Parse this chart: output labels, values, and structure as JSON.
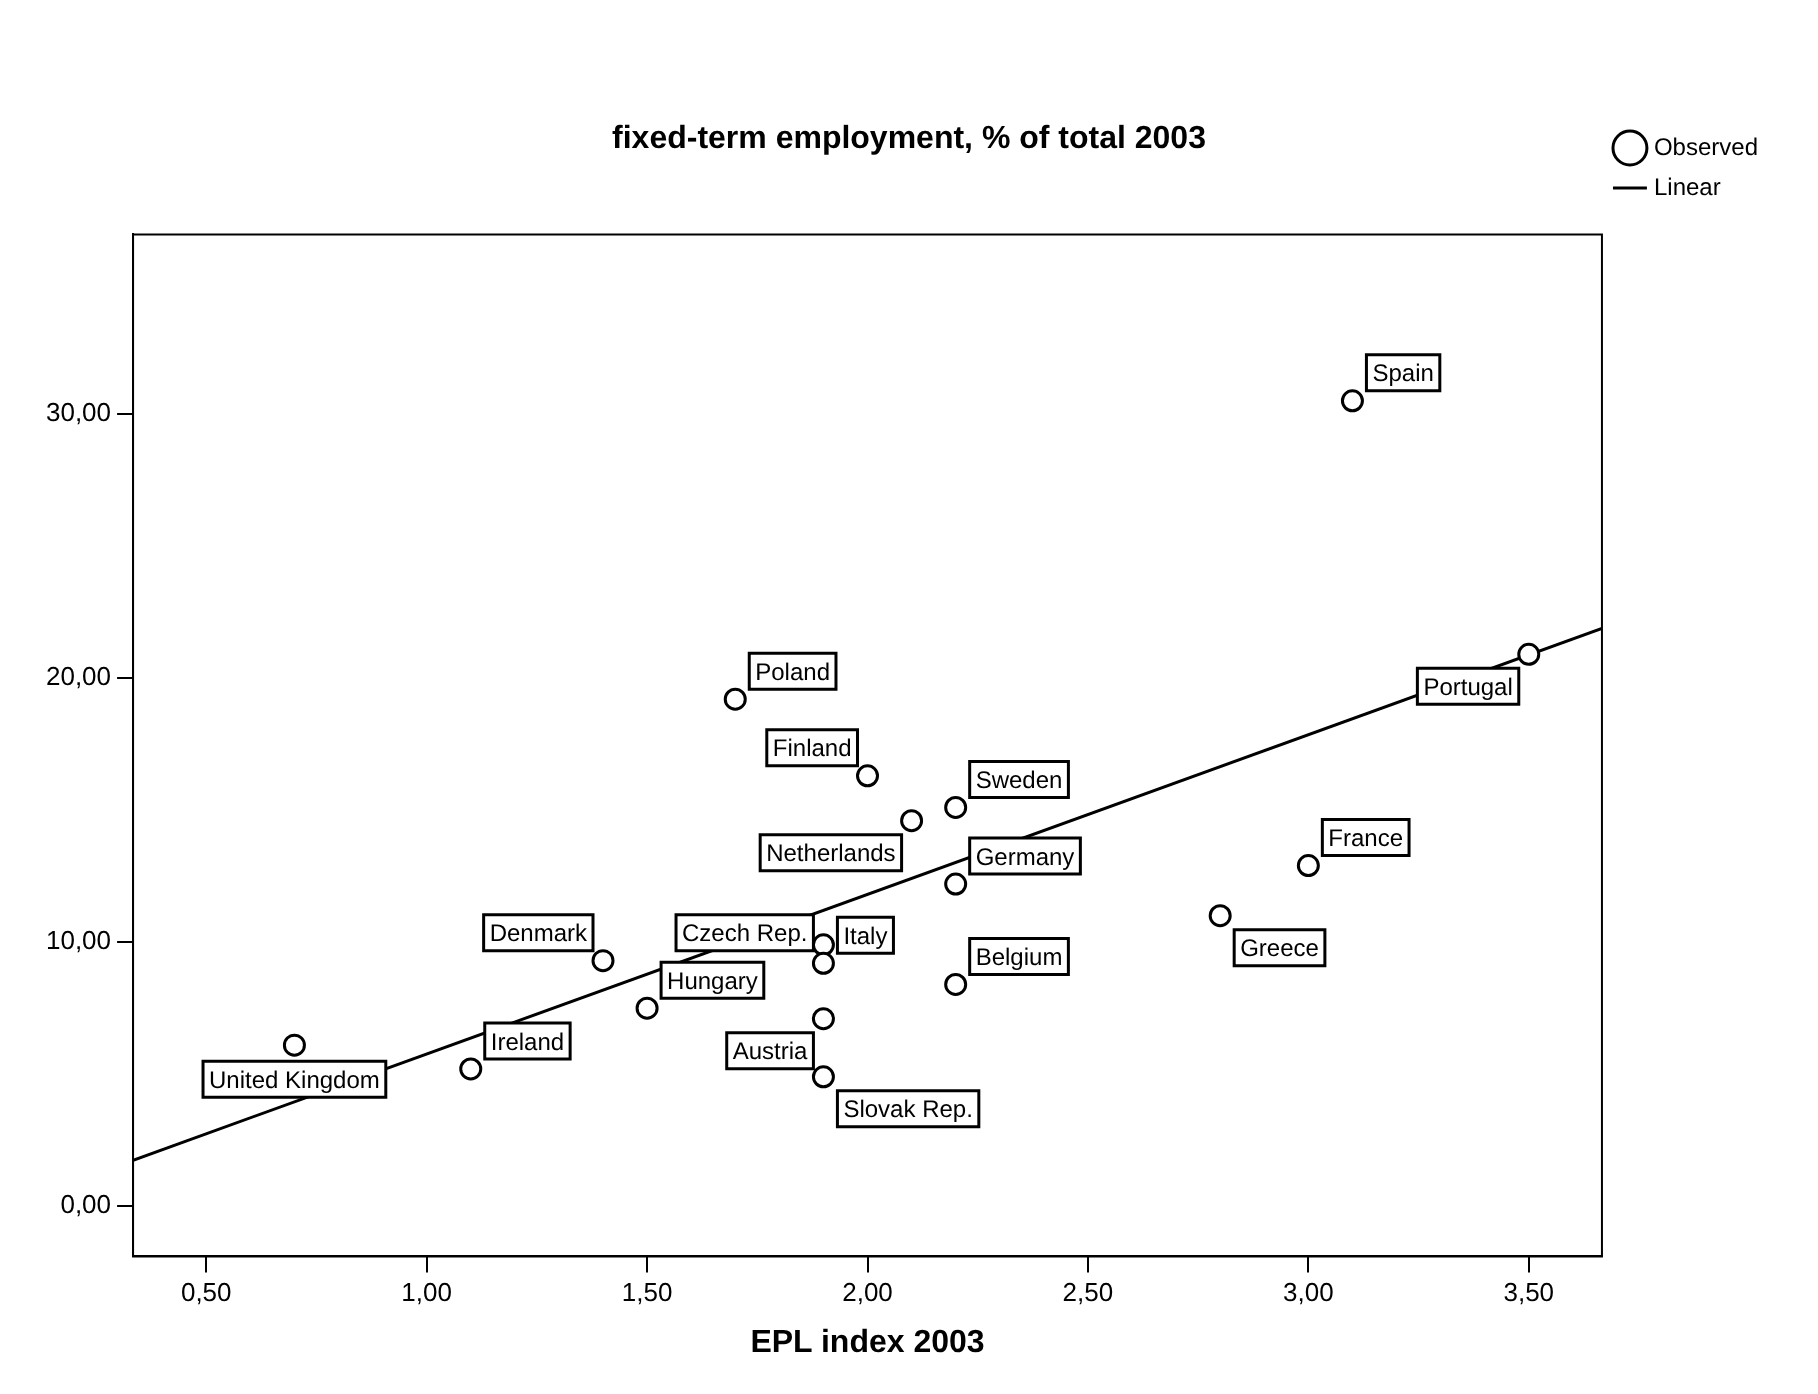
{
  "chart_data": {
    "type": "scatter",
    "title": "fixed-term employment, % of total 2003",
    "xlabel": "EPL index 2003",
    "xlim": [
      0.334,
      3.666
    ],
    "ylim": [
      -1.9,
      36.8
    ],
    "xticks": [
      {
        "value": 0.5,
        "label": "0,50"
      },
      {
        "value": 1,
        "label": "1,00"
      },
      {
        "value": 1.5,
        "label": "1,50"
      },
      {
        "value": 2,
        "label": "2,00"
      },
      {
        "value": 2.5,
        "label": "2,50"
      },
      {
        "value": 3,
        "label": "3,00"
      },
      {
        "value": 3.5,
        "label": "3,50"
      }
    ],
    "yticks": [
      {
        "value": 0,
        "label": "0,00"
      },
      {
        "value": 10,
        "label": "10,00"
      },
      {
        "value": 20,
        "label": "20,00"
      },
      {
        "value": 30,
        "label": "30,00"
      }
    ],
    "legend": "top right",
    "grid": false,
    "series": [
      {
        "name": "Observed",
        "color": "#000000",
        "marker": "circle",
        "x": [
          3.1,
          1.7,
          2.0,
          3.5,
          2.2,
          2.1,
          2.2,
          3.0,
          2.8,
          1.9,
          1.4,
          1.9,
          1.5,
          2.2,
          1.9,
          1.9,
          1.1,
          0.7
        ],
        "values": [
          30.5,
          19.2,
          16.3,
          20.9,
          15.1,
          14.6,
          12.2,
          12.9,
          11.0,
          9.9,
          9.3,
          9.2,
          7.5,
          8.4,
          7.1,
          4.9,
          5.2,
          6.1
        ]
      },
      {
        "name": "Linear",
        "type": "line",
        "color": "#000000",
        "marker": "none",
        "x": [
          0.334,
          3.666
        ],
        "values": [
          1.74,
          21.88
        ]
      }
    ],
    "annotations": [
      {
        "text": "Spain",
        "x": 3.1,
        "y": 30.5
      },
      {
        "text": "Poland",
        "x": 1.7,
        "y": 19.2
      },
      {
        "text": "Finland",
        "x": 2.0,
        "y": 16.3
      },
      {
        "text": "Portugal",
        "x": 3.5,
        "y": 20.9
      },
      {
        "text": "Sweden",
        "x": 2.2,
        "y": 15.1
      },
      {
        "text": "Netherlands",
        "x": 2.1,
        "y": 14.6
      },
      {
        "text": "Germany",
        "x": 2.2,
        "y": 12.2
      },
      {
        "text": "France",
        "x": 3.0,
        "y": 12.9
      },
      {
        "text": "Greece",
        "x": 2.8,
        "y": 11.0
      },
      {
        "text": "Czech Rep.",
        "x": 1.9,
        "y": 9.9
      },
      {
        "text": "Denmark",
        "x": 1.4,
        "y": 9.3
      },
      {
        "text": "Italy",
        "x": 1.9,
        "y": 9.2
      },
      {
        "text": "Hungary",
        "x": 1.5,
        "y": 7.5
      },
      {
        "text": "Belgium",
        "x": 2.2,
        "y": 8.4
      },
      {
        "text": "Austria",
        "x": 1.9,
        "y": 7.1
      },
      {
        "text": "Slovak Rep.",
        "x": 1.9,
        "y": 4.9
      },
      {
        "text": "Ireland",
        "x": 1.1,
        "y": 5.2
      },
      {
        "text": "United Kingdom",
        "x": 0.7,
        "y": 6.1
      }
    ]
  }
}
